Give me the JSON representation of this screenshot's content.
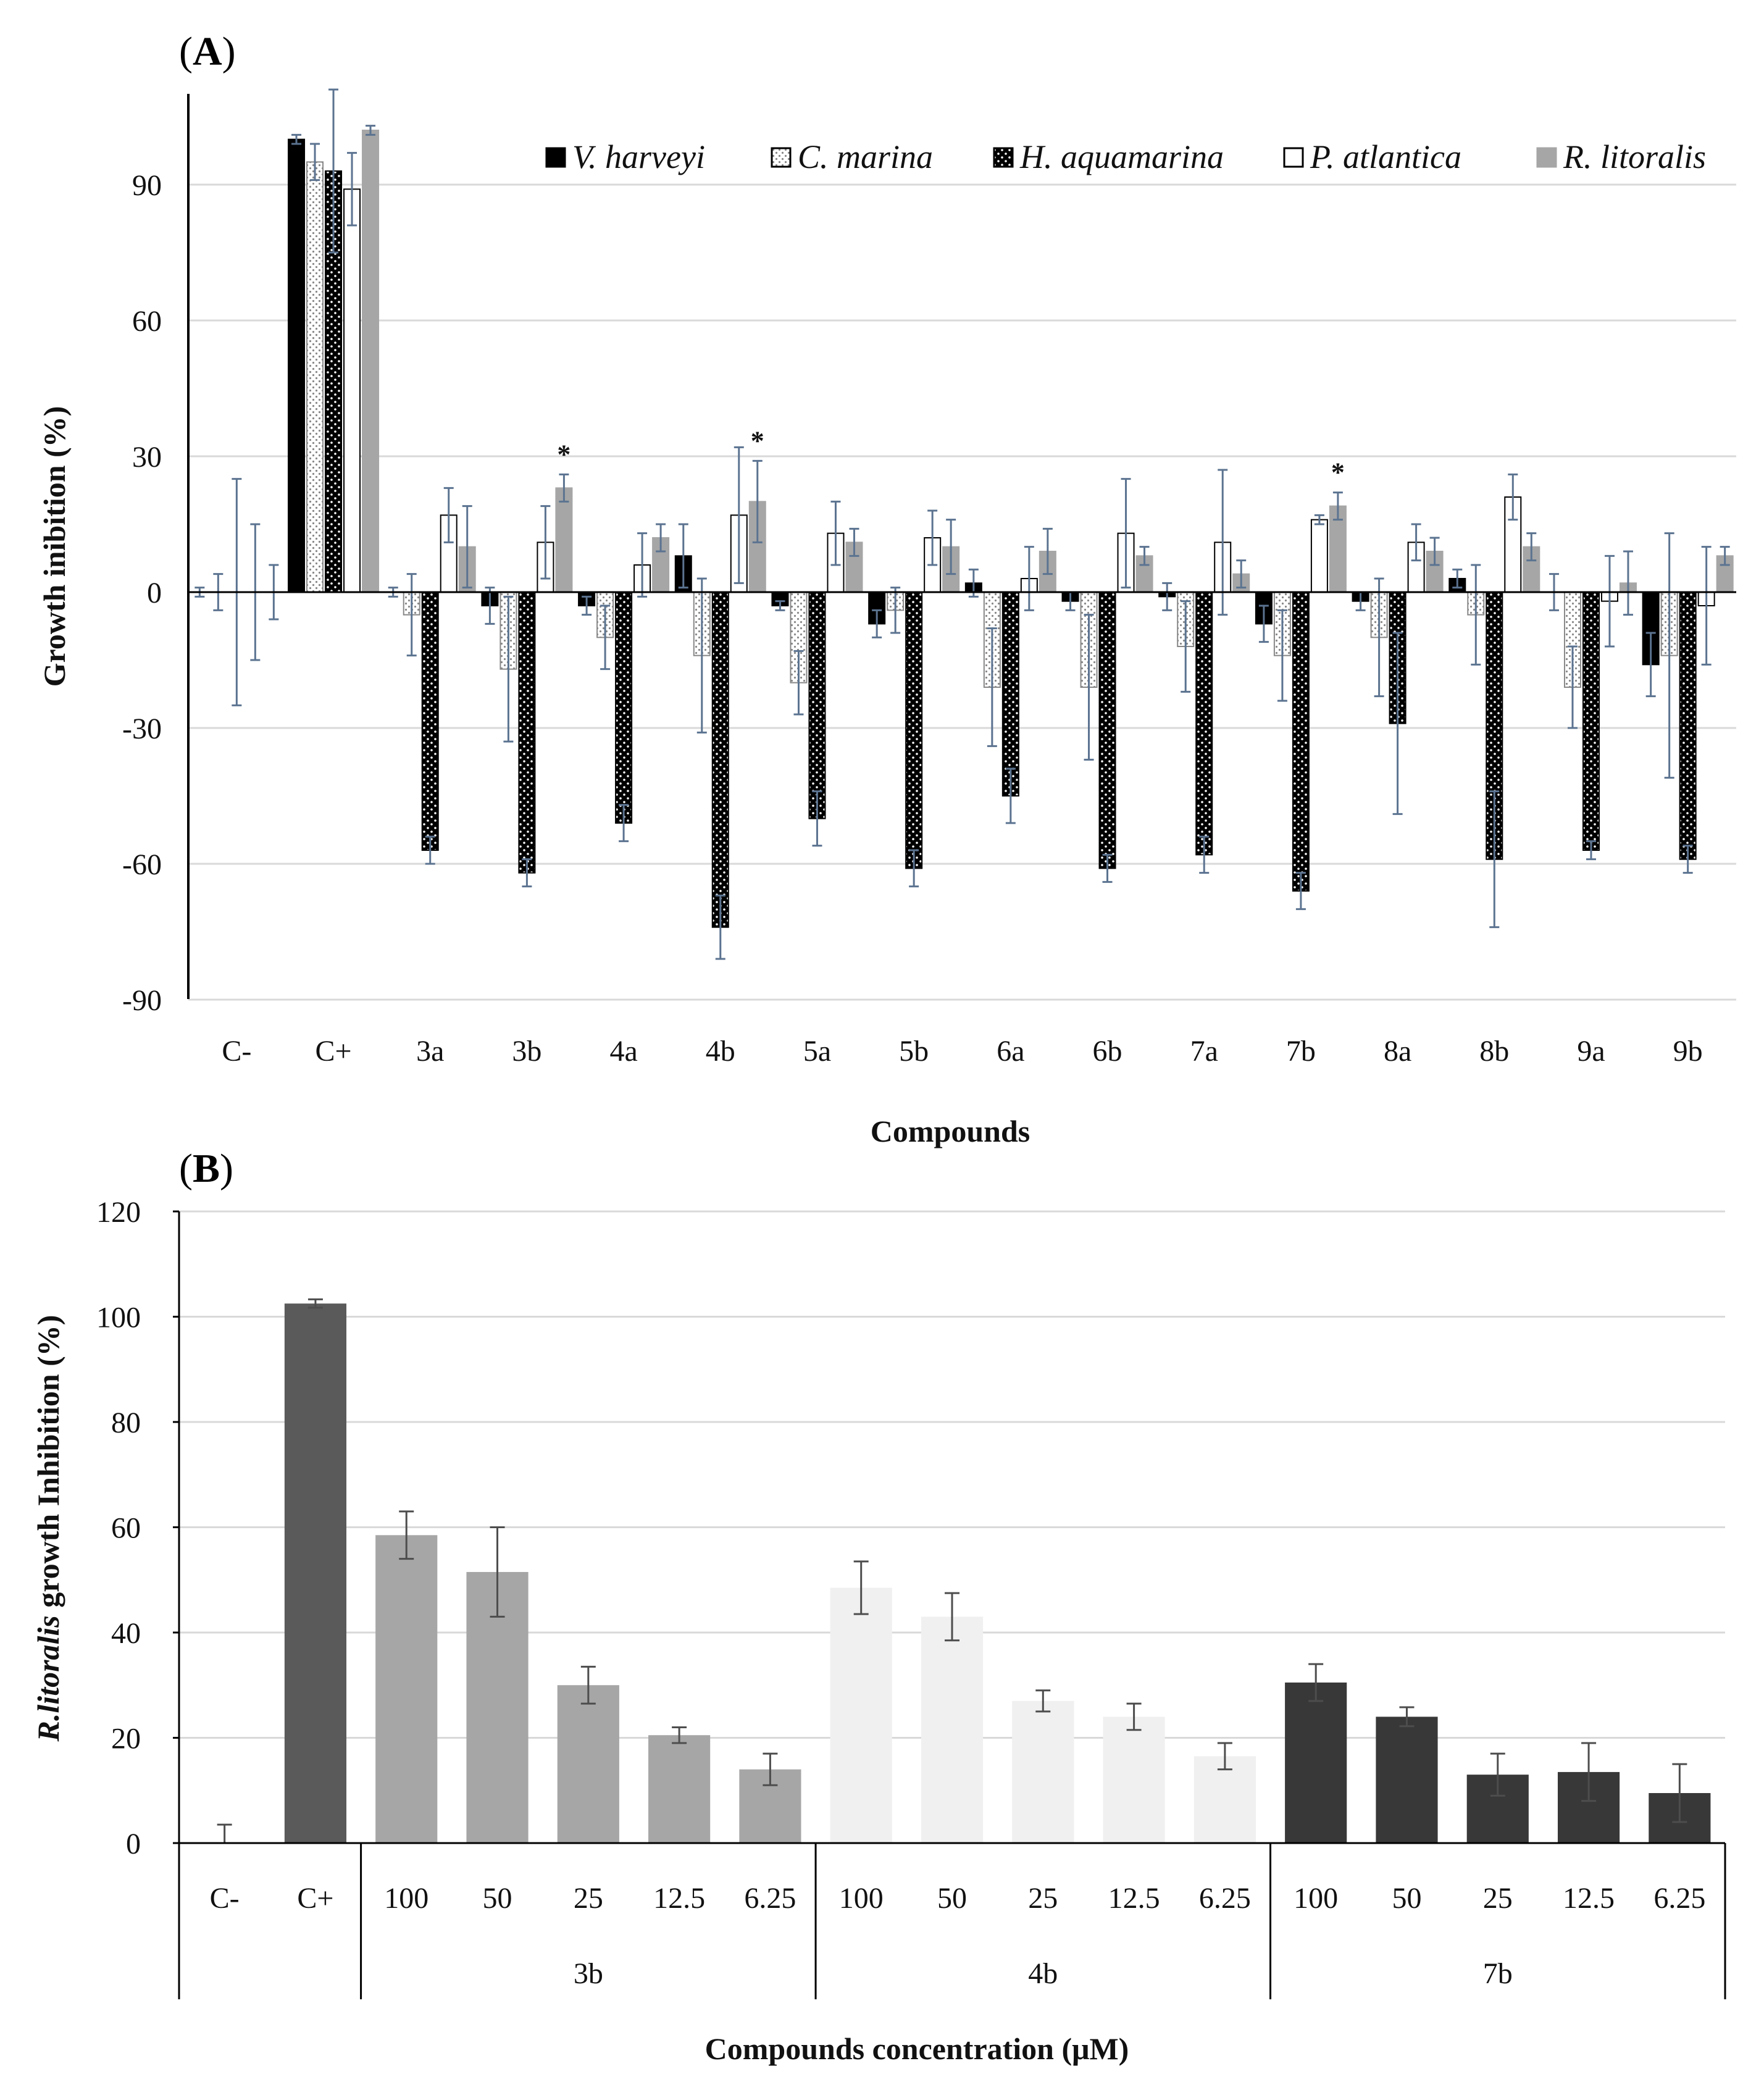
{
  "chart_data": [
    {
      "type": "bar",
      "panel_label": "A",
      "title": "",
      "xlabel": "Compounds",
      "ylabel": "Growth inibition (%)",
      "ylim": [
        -90,
        110
      ],
      "yticks": [
        90,
        60,
        30,
        0,
        -30,
        -60,
        -90
      ],
      "grid": true,
      "legend_position": "top-right",
      "categories": [
        "C-",
        "C+",
        "3a",
        "3b",
        "4a",
        "4b",
        "5a",
        "5b",
        "6a",
        "6b",
        "7a",
        "7b",
        "8a",
        "8b",
        "9a",
        "9b"
      ],
      "series": [
        {
          "name": "V. harveyi",
          "pattern": "solid-black",
          "values": [
            0,
            100,
            0,
            -3,
            -3,
            8,
            -3,
            -7,
            2,
            -2,
            -1,
            -7,
            -2,
            3,
            0,
            -16
          ],
          "errors": [
            1,
            1,
            1,
            4,
            2,
            7,
            1,
            3,
            3,
            2,
            3,
            4,
            2,
            2,
            4,
            7
          ]
        },
        {
          "name": "C. marina",
          "pattern": "dotted-light",
          "values": [
            0,
            95,
            -5,
            -17,
            -10,
            -14,
            -20,
            -4,
            -21,
            -21,
            -12,
            -14,
            -10,
            -5,
            -21,
            -14
          ],
          "errors": [
            4,
            4,
            9,
            16,
            7,
            17,
            7,
            5,
            13,
            16,
            10,
            10,
            13,
            11,
            9,
            27
          ]
        },
        {
          "name": "H. aquamarina",
          "pattern": "checker-black",
          "values": [
            0,
            93,
            -57,
            -62,
            -51,
            -74,
            -50,
            -61,
            -45,
            -61,
            -58,
            -66,
            -29,
            -59,
            -57,
            -59
          ],
          "errors": [
            25,
            18,
            3,
            3,
            4,
            7,
            6,
            4,
            6,
            3,
            4,
            4,
            20,
            15,
            2,
            3
          ]
        },
        {
          "name": "P. atlantica",
          "pattern": "white-outline",
          "values": [
            0,
            89,
            17,
            11,
            6,
            17,
            13,
            12,
            3,
            13,
            11,
            16,
            11,
            21,
            -2,
            -3
          ],
          "errors": [
            15,
            8,
            6,
            8,
            7,
            15,
            7,
            6,
            7,
            12,
            16,
            1,
            4,
            5,
            10,
            13
          ]
        },
        {
          "name": "R. litoralis",
          "pattern": "solid-gray",
          "values": [
            0,
            102,
            10,
            23,
            12,
            20,
            11,
            10,
            9,
            8,
            4,
            19,
            9,
            10,
            2,
            8
          ],
          "errors": [
            6,
            1,
            9,
            3,
            3,
            9,
            3,
            6,
            5,
            2,
            3,
            3,
            3,
            3,
            7,
            2
          ]
        }
      ],
      "significance_markers": [
        {
          "category": "3b",
          "series": "R. litoralis",
          "label": "*"
        },
        {
          "category": "4b",
          "series": "R. litoralis",
          "label": "*"
        },
        {
          "category": "7b",
          "series": "R. litoralis",
          "label": "*"
        }
      ]
    },
    {
      "type": "bar",
      "panel_label": "B",
      "title": "",
      "xlabel": "Compounds concentration (μM)",
      "ylabel_italic": "R.litoralis",
      "ylabel_rest": " growth Inhibition (%)",
      "ylim": [
        0,
        120
      ],
      "yticks": [
        120,
        100,
        80,
        60,
        40,
        20,
        0
      ],
      "grid": true,
      "bars": [
        {
          "label": "C-",
          "group": "",
          "value": 0,
          "error": 3.5,
          "color": "#5a5a5a"
        },
        {
          "label": "C+",
          "group": "",
          "value": 102.5,
          "error": 0.8,
          "color": "#5a5a5a"
        },
        {
          "label": "100",
          "group": "3b",
          "value": 58.5,
          "error": 4.5,
          "color": "#a6a6a6"
        },
        {
          "label": "50",
          "group": "3b",
          "value": 51.5,
          "error": 8.5,
          "color": "#a6a6a6"
        },
        {
          "label": "25",
          "group": "3b",
          "value": 30,
          "error": 3.5,
          "color": "#a6a6a6"
        },
        {
          "label": "12.5",
          "group": "3b",
          "value": 20.5,
          "error": 1.5,
          "color": "#a6a6a6"
        },
        {
          "label": "6.25",
          "group": "3b",
          "value": 14,
          "error": 3,
          "color": "#a6a6a6"
        },
        {
          "label": "100",
          "group": "4b",
          "value": 48.5,
          "error": 5,
          "color": "#f0f0f0"
        },
        {
          "label": "50",
          "group": "4b",
          "value": 43,
          "error": 4.5,
          "color": "#f0f0f0"
        },
        {
          "label": "25",
          "group": "4b",
          "value": 27,
          "error": 2,
          "color": "#f0f0f0"
        },
        {
          "label": "12.5",
          "group": "4b",
          "value": 24,
          "error": 2.5,
          "color": "#f0f0f0"
        },
        {
          "label": "6.25",
          "group": "4b",
          "value": 16.5,
          "error": 2.5,
          "color": "#f0f0f0"
        },
        {
          "label": "100",
          "group": "7b",
          "value": 30.5,
          "error": 3.5,
          "color": "#383838"
        },
        {
          "label": "50",
          "group": "7b",
          "value": 24,
          "error": 1.8,
          "color": "#383838"
        },
        {
          "label": "25",
          "group": "7b",
          "value": 13,
          "error": 4,
          "color": "#383838"
        },
        {
          "label": "12.5",
          "group": "7b",
          "value": 13.5,
          "error": 5.5,
          "color": "#383838"
        },
        {
          "label": "6.25",
          "group": "7b",
          "value": 9.5,
          "error": 5.5,
          "color": "#383838"
        }
      ],
      "groups": [
        "3b",
        "4b",
        "7b"
      ]
    }
  ],
  "colors": {
    "error_bar": "#5b7390",
    "error_bar_b": "#4d4d4d",
    "grid": "#d9d9d9",
    "axis": "#000000"
  }
}
